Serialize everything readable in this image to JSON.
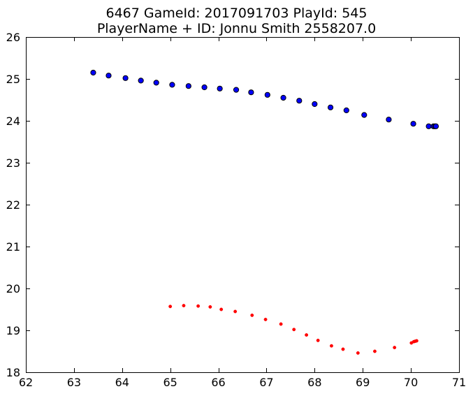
{
  "chart_data": {
    "type": "scatter",
    "title": "6467 GameId: 2017091703 PlayId: 545",
    "subtitle": "PlayerName + ID: Jonnu Smith 2558207.0",
    "xlim": [
      62,
      71
    ],
    "ylim": [
      18,
      26
    ],
    "xticks": [
      62,
      63,
      64,
      65,
      66,
      67,
      68,
      69,
      70,
      71
    ],
    "yticks": [
      18,
      19,
      20,
      21,
      22,
      23,
      24,
      25,
      26
    ],
    "grid": false,
    "series": [
      {
        "color": "#0000ff",
        "marker": "circle-large",
        "points": [
          [
            63.4,
            25.15
          ],
          [
            63.72,
            25.08
          ],
          [
            64.07,
            25.02
          ],
          [
            64.39,
            24.96
          ],
          [
            64.71,
            24.91
          ],
          [
            65.04,
            24.86
          ],
          [
            65.38,
            24.83
          ],
          [
            65.71,
            24.8
          ],
          [
            66.03,
            24.77
          ],
          [
            66.37,
            24.74
          ],
          [
            66.68,
            24.68
          ],
          [
            67.02,
            24.62
          ],
          [
            67.35,
            24.55
          ],
          [
            67.68,
            24.48
          ],
          [
            68.0,
            24.4
          ],
          [
            68.33,
            24.32
          ],
          [
            68.66,
            24.25
          ],
          [
            69.03,
            24.14
          ],
          [
            69.54,
            24.03
          ],
          [
            70.05,
            23.93
          ],
          [
            70.37,
            23.87
          ],
          [
            70.47,
            23.87
          ],
          [
            70.5,
            23.87
          ],
          [
            70.52,
            23.87
          ]
        ]
      },
      {
        "color": "#ff0000",
        "marker": "dot-small",
        "points": [
          [
            65.0,
            19.57
          ],
          [
            65.28,
            19.59
          ],
          [
            65.58,
            19.58
          ],
          [
            65.83,
            19.56
          ],
          [
            66.06,
            19.5
          ],
          [
            66.35,
            19.45
          ],
          [
            66.7,
            19.36
          ],
          [
            66.98,
            19.26
          ],
          [
            67.3,
            19.15
          ],
          [
            67.57,
            19.02
          ],
          [
            67.83,
            18.89
          ],
          [
            68.07,
            18.76
          ],
          [
            68.35,
            18.63
          ],
          [
            68.59,
            18.55
          ],
          [
            68.9,
            18.46
          ],
          [
            69.25,
            18.5
          ],
          [
            69.66,
            18.59
          ],
          [
            70.01,
            18.7
          ],
          [
            70.06,
            18.73
          ],
          [
            70.09,
            18.74
          ],
          [
            70.12,
            18.75
          ]
        ]
      }
    ]
  }
}
